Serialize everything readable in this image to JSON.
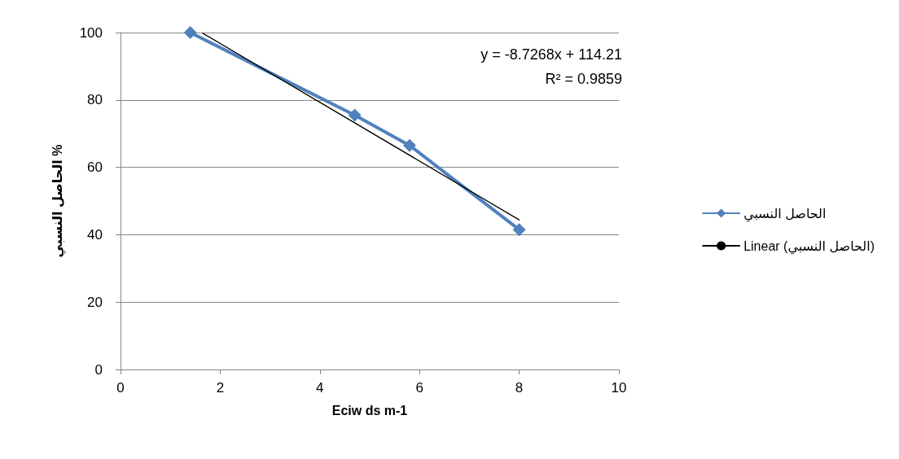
{
  "chart_data": {
    "type": "line",
    "xlabel": "Eciw ds m-1",
    "ylabel": "الحاصل النسبي %",
    "xlim": [
      0,
      10
    ],
    "xticks": [
      0,
      2,
      4,
      6,
      8,
      10
    ],
    "ylim": [
      0,
      100
    ],
    "yticks": [
      0,
      20,
      40,
      60,
      80,
      100
    ],
    "grid": "y",
    "legend": "right",
    "marker": "diamond",
    "series": [
      {
        "name": "الحاصل النسبي",
        "color": "#4f81bd",
        "x": [
          1.4,
          4.7,
          5.8,
          8
        ],
        "values": [
          100,
          75.5,
          66.5,
          41.5
        ]
      },
      {
        "name": "Linear (الحاصل النسبي)",
        "color": "#000000",
        "x": [
          1.65,
          8
        ],
        "values": [
          99.8,
          44.4
        ],
        "marker": "none"
      }
    ],
    "annotations": [
      "y = -8.7268x + 114.21",
      "R² = 0.9859"
    ]
  }
}
